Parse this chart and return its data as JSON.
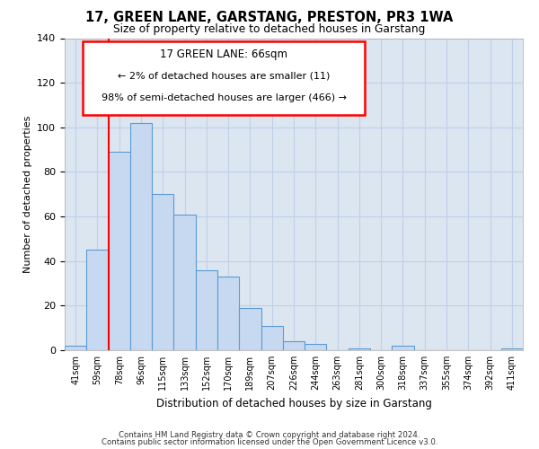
{
  "title": "17, GREEN LANE, GARSTANG, PRESTON, PR3 1WA",
  "subtitle": "Size of property relative to detached houses in Garstang",
  "xlabel": "Distribution of detached houses by size in Garstang",
  "ylabel": "Number of detached properties",
  "bin_labels": [
    "41sqm",
    "59sqm",
    "78sqm",
    "96sqm",
    "115sqm",
    "133sqm",
    "152sqm",
    "170sqm",
    "189sqm",
    "207sqm",
    "226sqm",
    "244sqm",
    "263sqm",
    "281sqm",
    "300sqm",
    "318sqm",
    "337sqm",
    "355sqm",
    "374sqm",
    "392sqm",
    "411sqm"
  ],
  "bar_values": [
    2,
    45,
    89,
    102,
    70,
    61,
    36,
    33,
    19,
    11,
    4,
    3,
    0,
    1,
    0,
    2,
    0,
    0,
    0,
    0,
    1
  ],
  "bar_color": "#c6d9f0",
  "bar_edge_color": "#5b9bd5",
  "grid_color": "#c0d0e8",
  "background_color": "#dce6f1",
  "ylim": [
    0,
    140
  ],
  "yticks": [
    0,
    20,
    40,
    60,
    80,
    100,
    120,
    140
  ],
  "annotation_title": "17 GREEN LANE: 66sqm",
  "annotation_line1": "← 2% of detached houses are smaller (11)",
  "annotation_line2": "98% of semi-detached houses are larger (466) →",
  "red_line_x": 1.5,
  "footer_line1": "Contains HM Land Registry data © Crown copyright and database right 2024.",
  "footer_line2": "Contains public sector information licensed under the Open Government Licence v3.0."
}
